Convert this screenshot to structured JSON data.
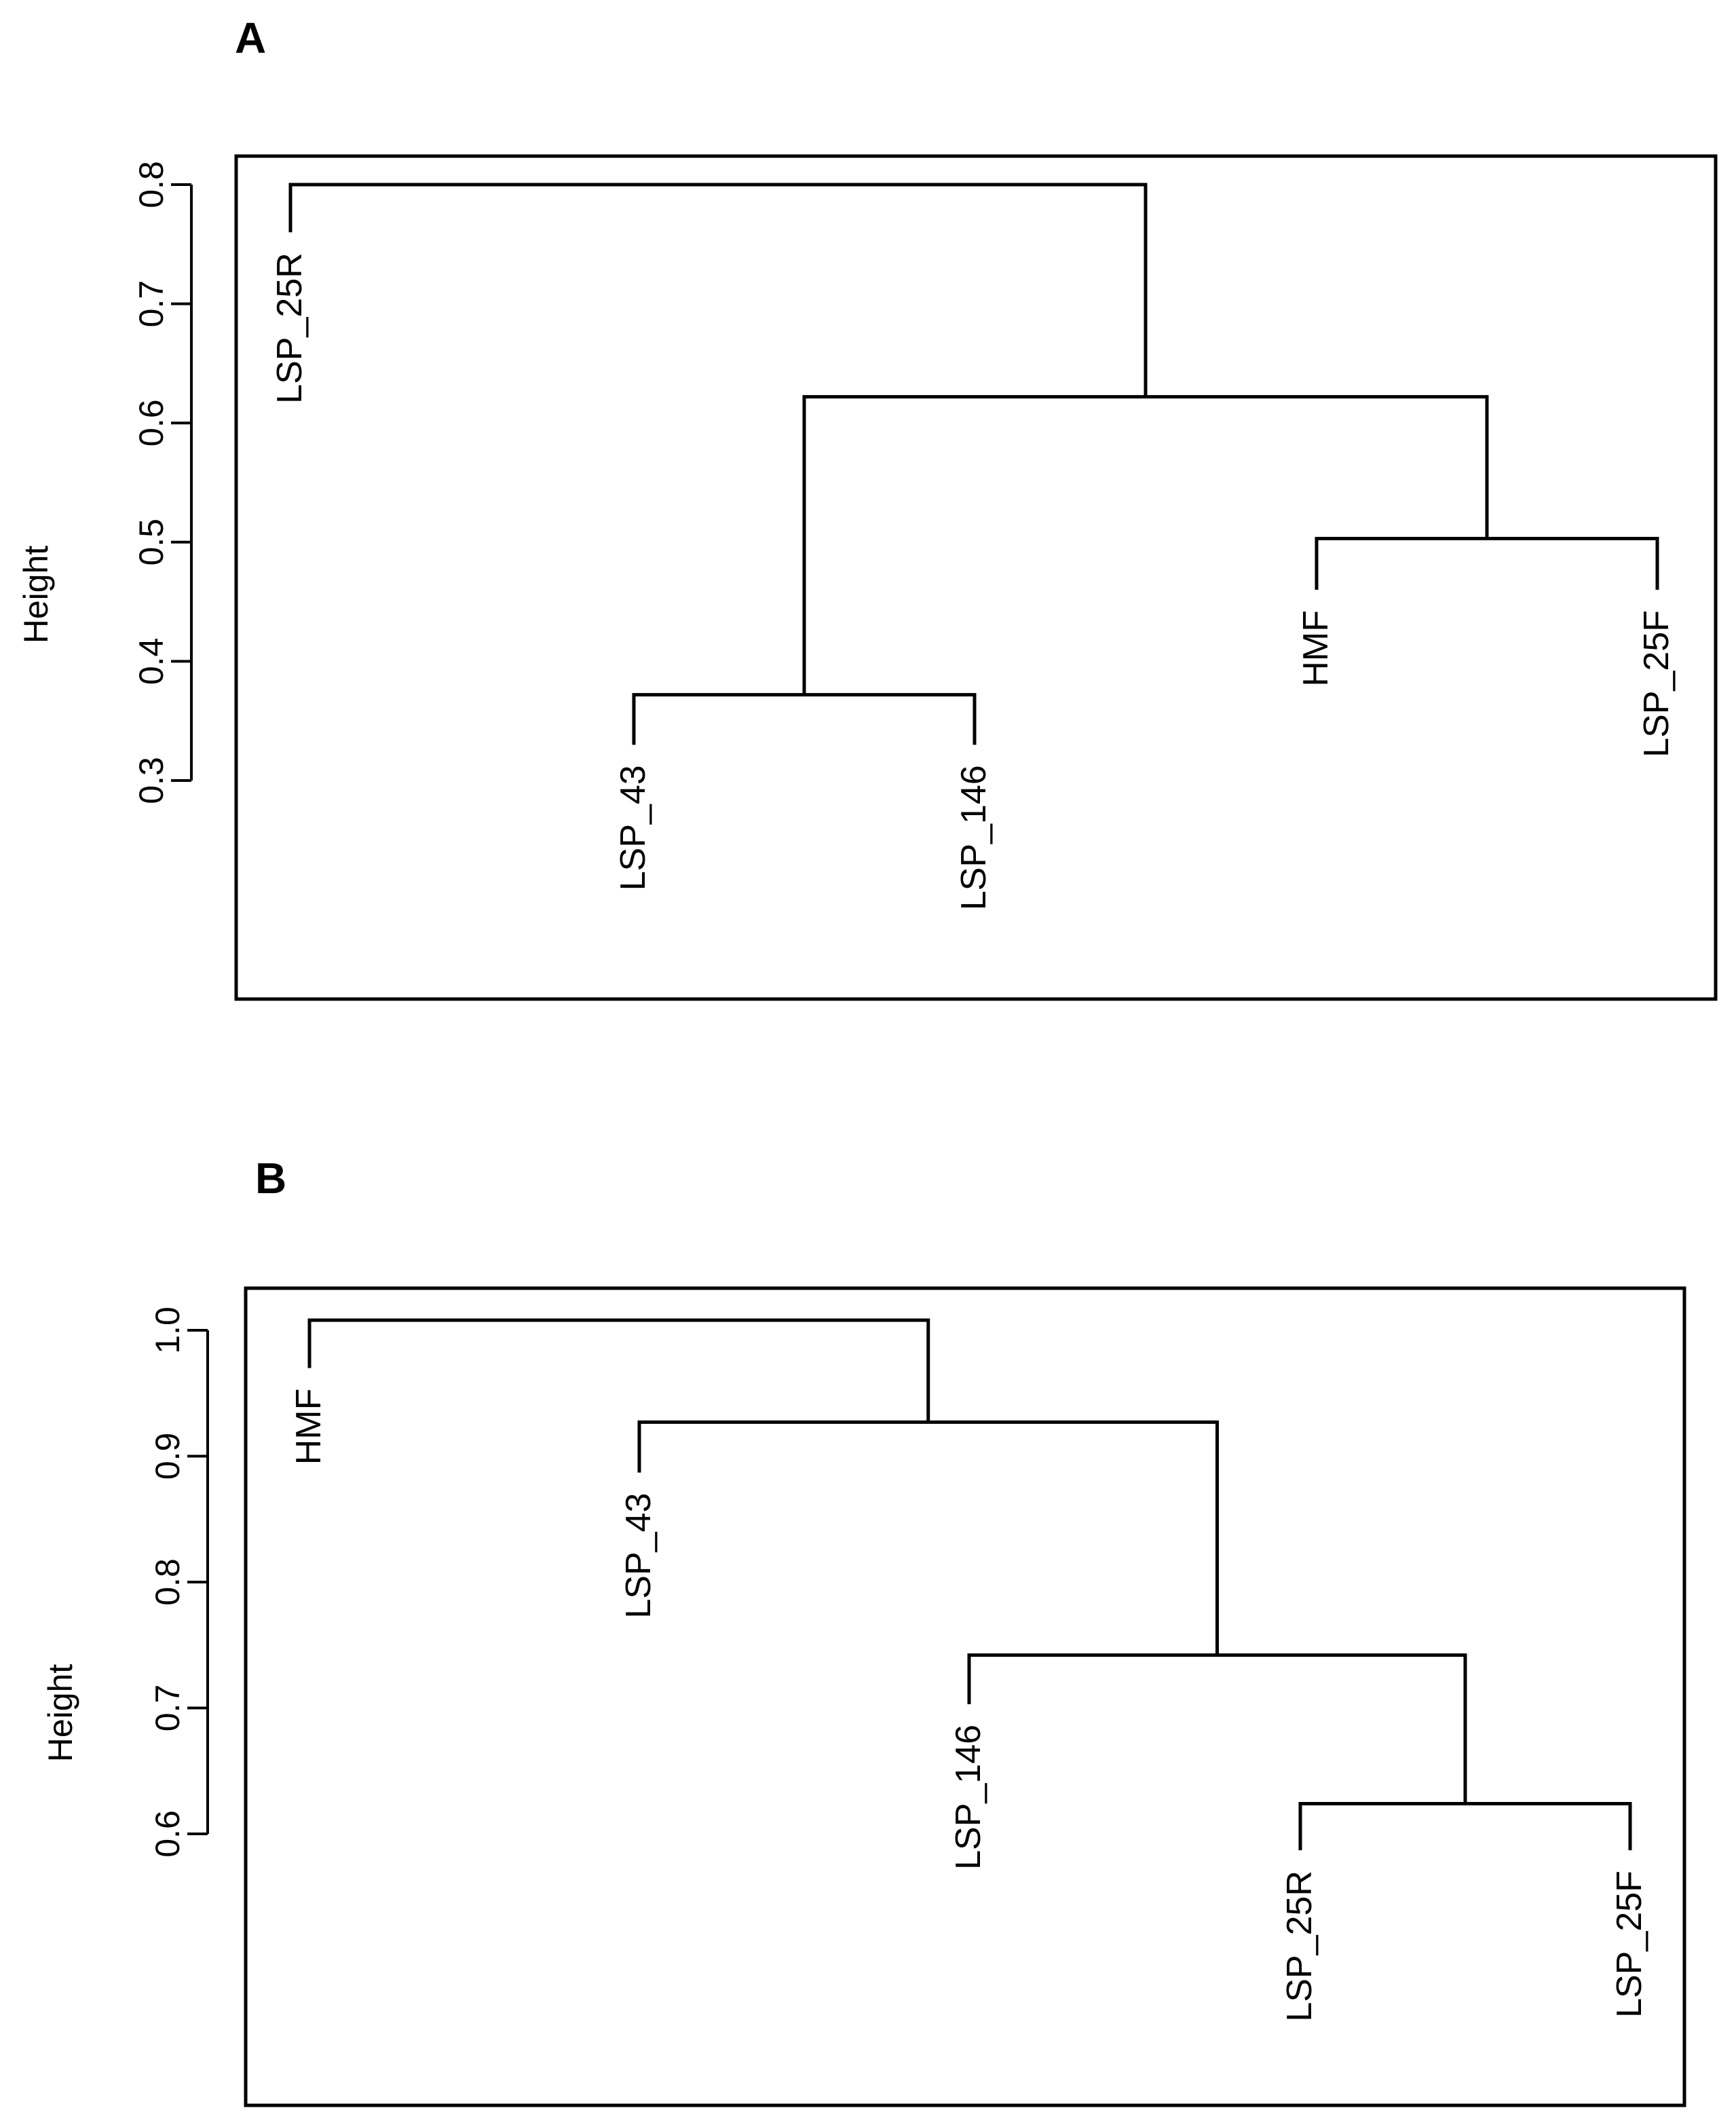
{
  "chart_data": [
    {
      "type": "dendrogram",
      "panel": "A",
      "ylabel": "Height",
      "ylim": [
        0.3,
        0.8
      ],
      "yticks": [
        0.3,
        0.4,
        0.5,
        0.6,
        0.7,
        0.8
      ],
      "ytick_labels": [
        "0.3",
        "0.4",
        "0.5",
        "0.6",
        "0.7",
        "0.8"
      ],
      "leaves": [
        "LSP_25R",
        "LSP_43",
        "LSP_146",
        "HMF",
        "LSP_25F"
      ],
      "leaf_heights": [
        0.76,
        0.33,
        0.33,
        0.46,
        0.46
      ],
      "merges": [
        {
          "left": "LSP_43",
          "right": "LSP_146",
          "height": 0.372
        },
        {
          "left": "HMF",
          "right": "LSP_25F",
          "height": 0.503
        },
        {
          "left": "LSP_43+LSP_146",
          "right": "HMF+LSP_25F",
          "height": 0.622
        },
        {
          "left": "LSP_25R",
          "right": "LSP_43+LSP_146+HMF+LSP_25F",
          "height": 0.8
        }
      ],
      "grid": false
    },
    {
      "type": "dendrogram",
      "panel": "B",
      "ylabel": "Height",
      "ylim": [
        0.6,
        1.0
      ],
      "yticks": [
        0.6,
        0.7,
        0.8,
        0.9,
        1.0
      ],
      "ytick_labels": [
        "0.6",
        "0.7",
        "0.8",
        "0.9",
        "1.0"
      ],
      "leaves": [
        "HMF",
        "LSP_43",
        "LSP_146",
        "LSP_25R",
        "LSP_25F"
      ],
      "leaf_heights": [
        0.97,
        0.887,
        0.703,
        0.587,
        0.587
      ],
      "merges": [
        {
          "left": "LSP_25R",
          "right": "LSP_25F",
          "height": 0.624
        },
        {
          "left": "LSP_146",
          "right": "LSP_25R+LSP_25F",
          "height": 0.742
        },
        {
          "left": "LSP_43",
          "right": "LSP_146+LSP_25R+LSP_25F",
          "height": 0.927
        },
        {
          "left": "HMF",
          "right": "LSP_43+LSP_146+LSP_25R+LSP_25F",
          "height": 1.008
        }
      ],
      "grid": false
    }
  ]
}
